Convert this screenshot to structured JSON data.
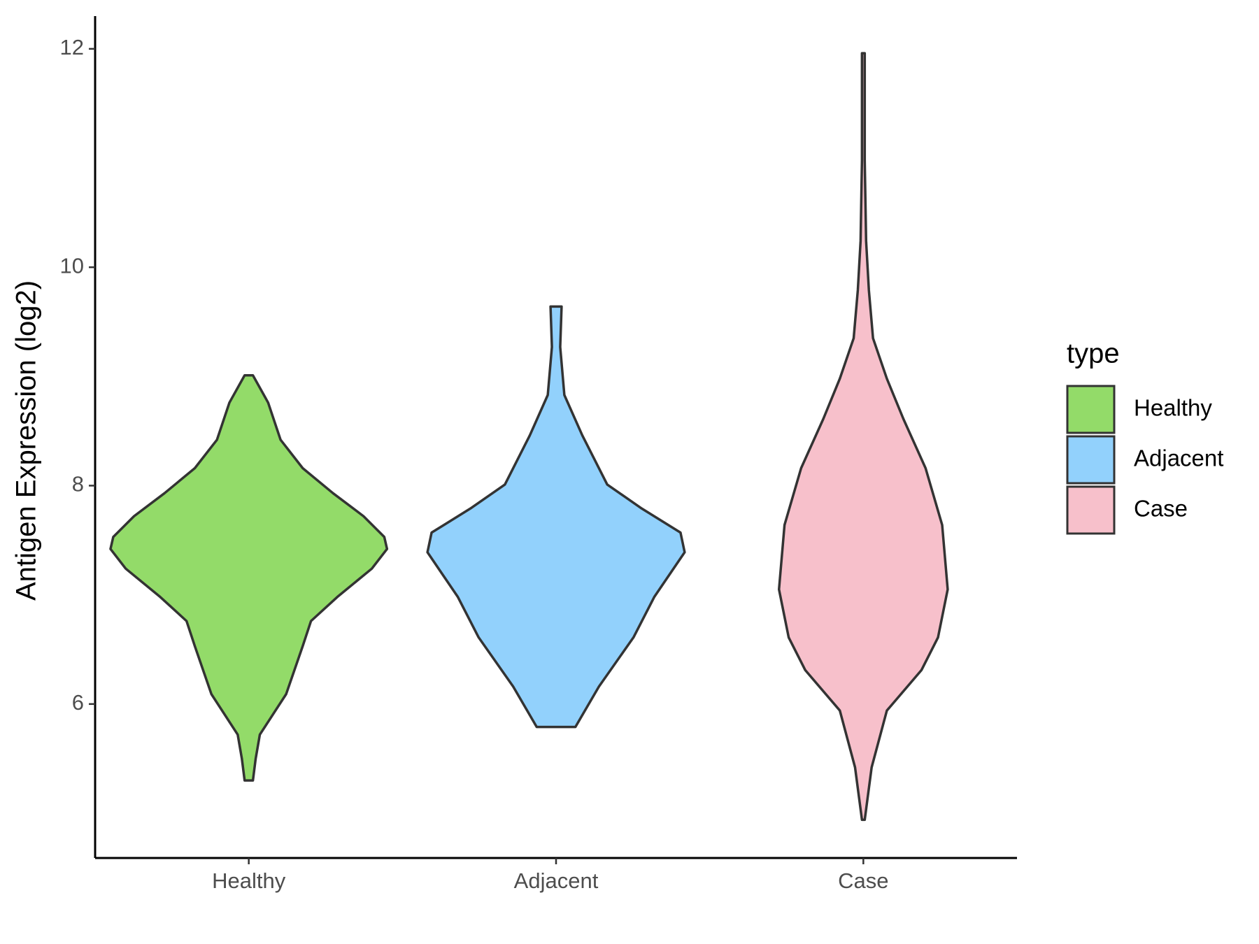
{
  "chart_data": {
    "type": "violin",
    "y_label": "Antigen Expression (log2)",
    "categories": [
      "Healthy",
      "Adjacent",
      "Case"
    ],
    "ylim": [
      4.59,
      12.3
    ],
    "yticks": [
      6,
      8,
      10,
      12
    ],
    "legend_title": "type",
    "legend_position": "right",
    "series": [
      {
        "name": "Healthy",
        "color": "#93db69",
        "values": [
          9.01,
          8.76,
          8.42,
          8.16,
          7.93,
          7.72,
          7.53,
          7.42,
          7.24,
          6.98,
          6.76,
          6.53,
          6.09,
          5.72,
          5.5,
          5.3
        ],
        "density": [
          0.03,
          0.14,
          0.23,
          0.39,
          0.61,
          0.83,
          0.98,
          1.0,
          0.89,
          0.64,
          0.45,
          0.39,
          0.27,
          0.08,
          0.05,
          0.03
        ]
      },
      {
        "name": "Adjacent",
        "color": "#92d1fc",
        "values": [
          9.64,
          9.27,
          8.83,
          8.46,
          8.01,
          7.79,
          7.57,
          7.39,
          6.98,
          6.61,
          6.16,
          5.79
        ],
        "density": [
          0.04,
          0.03,
          0.06,
          0.19,
          0.37,
          0.62,
          0.9,
          0.93,
          0.71,
          0.56,
          0.31,
          0.14
        ]
      },
      {
        "name": "Case",
        "color": "#f7c0cb",
        "values": [
          11.96,
          10.98,
          10.24,
          9.79,
          9.35,
          8.98,
          8.61,
          8.16,
          7.64,
          7.05,
          6.61,
          6.31,
          5.94,
          5.42,
          4.94
        ],
        "density": [
          0.01,
          0.01,
          0.02,
          0.04,
          0.07,
          0.17,
          0.29,
          0.45,
          0.57,
          0.61,
          0.54,
          0.42,
          0.17,
          0.06,
          0.01
        ]
      }
    ]
  }
}
